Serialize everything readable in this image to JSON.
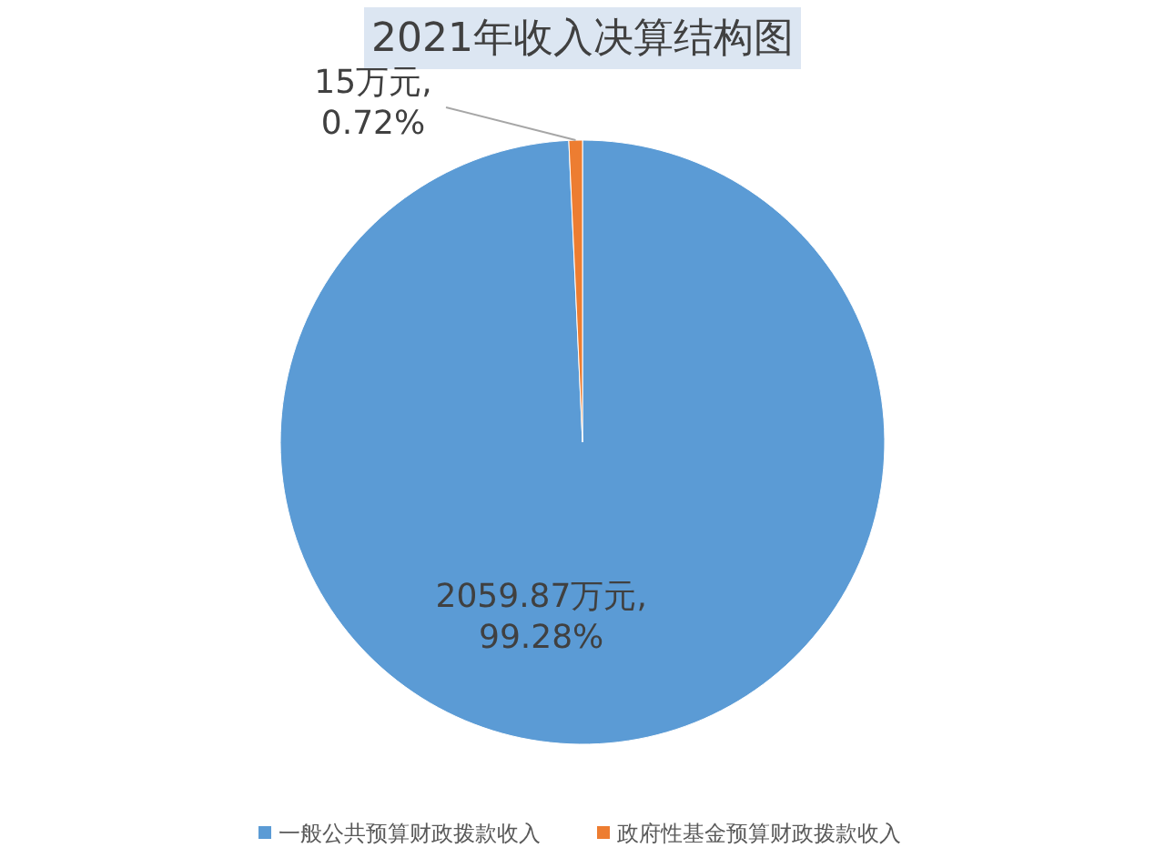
{
  "chart_data": {
    "type": "pie",
    "title": "2021年收入决算结构图",
    "categories": [
      "一般公共预算财政拨款收入",
      "政府性基金预算财政拨款收入"
    ],
    "values": [
      2059.87,
      15
    ],
    "colors": [
      "#5b9bd5",
      "#ed7d31"
    ],
    "value_labels": [
      "2059.87万元,\n99.28%",
      "15万元,\n0.72%"
    ],
    "legend": "bottom"
  }
}
